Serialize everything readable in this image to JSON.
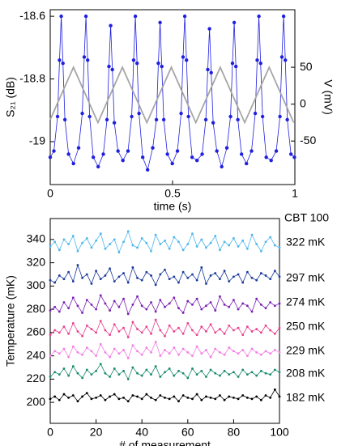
{
  "chart_data": [
    {
      "type": "scatter-line",
      "x_label": "time (s)",
      "y_label": "S₂₁ (dB)",
      "y2_label": "V (mV)",
      "xlim": [
        0,
        1
      ],
      "xticks": [
        0,
        0.5,
        1
      ],
      "ylim": [
        -19.137,
        -18.579
      ],
      "yticks": [
        -18.6,
        -18.8,
        -19
      ],
      "y2lim": [
        -109,
        128
      ],
      "y2ticks": [
        50,
        0,
        -50
      ],
      "series": [
        {
          "color": "#1f1fe0",
          "x": [
            0,
            0.015,
            0.03,
            0.038,
            0.045,
            0.052,
            0.06,
            0.075,
            0.095,
            0.116,
            0.131,
            0.139,
            0.146,
            0.153,
            0.161,
            0.176,
            0.196,
            0.217,
            0.232,
            0.24,
            0.247,
            0.254,
            0.262,
            0.277,
            0.297,
            0.318,
            0.333,
            0.341,
            0.348,
            0.355,
            0.363,
            0.378,
            0.398,
            0.419,
            0.434,
            0.442,
            0.449,
            0.456,
            0.464,
            0.479,
            0.499,
            0.52,
            0.535,
            0.543,
            0.55,
            0.557,
            0.565,
            0.58,
            0.6,
            0.621,
            0.636,
            0.644,
            0.651,
            0.658,
            0.666,
            0.681,
            0.701,
            0.722,
            0.737,
            0.745,
            0.752,
            0.759,
            0.767,
            0.782,
            0.802,
            0.823,
            0.838,
            0.846,
            0.853,
            0.86,
            0.868,
            0.883,
            0.903,
            0.924,
            0.939,
            0.947,
            0.954,
            0.961,
            0.969,
            0.984,
            0.998
          ],
          "values": [
            -19.05,
            -19.03,
            -18.92,
            -18.74,
            -18.6,
            -18.75,
            -18.93,
            -19.04,
            -19.07,
            -19.02,
            -18.91,
            -18.73,
            -18.6,
            -18.74,
            -18.92,
            -19.05,
            -19.08,
            -19.04,
            -18.93,
            -18.76,
            -18.63,
            -18.77,
            -18.94,
            -19.03,
            -19.06,
            -19.03,
            -18.92,
            -18.74,
            -18.6,
            -18.75,
            -18.91,
            -19.05,
            -19.09,
            -19.02,
            -18.93,
            -18.75,
            -18.62,
            -18.76,
            -18.93,
            -19.04,
            -19.07,
            -19.03,
            -18.91,
            -18.73,
            -18.6,
            -18.74,
            -18.92,
            -19.05,
            -19.06,
            -19.04,
            -18.93,
            -18.77,
            -18.64,
            -18.78,
            -18.94,
            -19.03,
            -19.08,
            -19.02,
            -18.92,
            -18.75,
            -18.62,
            -18.76,
            -18.93,
            -19.04,
            -19.07,
            -19.03,
            -18.91,
            -18.74,
            -18.6,
            -18.75,
            -18.92,
            -19.05,
            -19.06,
            -19.03,
            -18.92,
            -18.73,
            -18.6,
            -18.74,
            -18.93,
            -19.04,
            -19.05
          ]
        },
        {
          "color": "#a6a6a6",
          "axis": "y2",
          "markers": false,
          "x": [
            0,
            0.095,
            0.195,
            0.295,
            0.395,
            0.495,
            0.595,
            0.695,
            0.795,
            0.895,
            0.995
          ],
          "values": [
            -21,
            50,
            -25,
            50,
            -25,
            50,
            -25,
            50,
            -25,
            50,
            -25
          ]
        }
      ]
    },
    {
      "type": "scatter-line",
      "x_label": "# of measurement",
      "y_label": "Temperature (mK)",
      "annotation": "CBT 100",
      "xlim": [
        0,
        100
      ],
      "xticks": [
        0,
        20,
        40,
        60,
        80,
        100
      ],
      "ylim": [
        182,
        358
      ],
      "yticks": [
        200,
        220,
        240,
        260,
        280,
        300,
        320,
        340
      ],
      "x": [
        0,
        2,
        4,
        6,
        8,
        10,
        12,
        14,
        16,
        18,
        20,
        22,
        24,
        26,
        28,
        30,
        32,
        34,
        36,
        38,
        40,
        42,
        44,
        46,
        48,
        50,
        52,
        54,
        56,
        58,
        60,
        62,
        64,
        66,
        68,
        70,
        72,
        74,
        76,
        78,
        80,
        82,
        84,
        86,
        88,
        90,
        92,
        94,
        96,
        98,
        100
      ],
      "series": [
        {
          "name": "322 mK",
          "color": "#4db6ec",
          "values": [
            334,
            338,
            331,
            340,
            336,
            343,
            330,
            337,
            341,
            333,
            339,
            345,
            332,
            336,
            340,
            329,
            338,
            347,
            335,
            333,
            341,
            337,
            330,
            344,
            336,
            339,
            332,
            342,
            338,
            331,
            336,
            345,
            334,
            340,
            333,
            337,
            343,
            331,
            338,
            335,
            341,
            334,
            339,
            332,
            344,
            336,
            330,
            338,
            342,
            335,
            333
          ]
        },
        {
          "name": "297 mK",
          "color": "#1b3a9c",
          "values": [
            305,
            303,
            309,
            306,
            312,
            304,
            318,
            307,
            310,
            302,
            313,
            306,
            309,
            315,
            304,
            308,
            311,
            303,
            316,
            307,
            305,
            312,
            309,
            301,
            310,
            314,
            306,
            308,
            303,
            312,
            307,
            310,
            305,
            316,
            302,
            309,
            311,
            306,
            313,
            304,
            308,
            310,
            303,
            312,
            307,
            305,
            311,
            309,
            306,
            313,
            308
          ]
        },
        {
          "name": "274 mK",
          "color": "#7a1fb4",
          "values": [
            279,
            282,
            278,
            286,
            281,
            290,
            283,
            277,
            288,
            284,
            280,
            292,
            285,
            279,
            287,
            282,
            289,
            276,
            284,
            291,
            283,
            280,
            286,
            278,
            288,
            282,
            285,
            290,
            281,
            277,
            287,
            284,
            289,
            280,
            283,
            286,
            279,
            291,
            284,
            282,
            288,
            280,
            285,
            283,
            278,
            289,
            284,
            281,
            286,
            283,
            285
          ]
        },
        {
          "name": "250 mK",
          "color": "#ea3f8f",
          "values": [
            258,
            262,
            260,
            265,
            259,
            268,
            261,
            257,
            266,
            263,
            260,
            270,
            262,
            258,
            267,
            261,
            264,
            256,
            269,
            263,
            260,
            265,
            259,
            271,
            262,
            257,
            266,
            261,
            264,
            259,
            268,
            262,
            258,
            265,
            261,
            267,
            260,
            263,
            259,
            266,
            262,
            264,
            258,
            265,
            261,
            263,
            260,
            266,
            262,
            259,
            264
          ]
        },
        {
          "name": "229 mK",
          "color": "#f47de4",
          "values": [
            240,
            244,
            242,
            246,
            239,
            248,
            243,
            241,
            247,
            244,
            240,
            250,
            243,
            239,
            246,
            242,
            245,
            238,
            249,
            244,
            241,
            247,
            243,
            252,
            240,
            245,
            242,
            247,
            241,
            246,
            243,
            240,
            248,
            242,
            245,
            239,
            246,
            243,
            241,
            247,
            244,
            242,
            245,
            240,
            246,
            243,
            241,
            244,
            242,
            245,
            243
          ]
        },
        {
          "name": "208 mK",
          "color": "#1a8a6c",
          "values": [
            222,
            226,
            224,
            229,
            223,
            231,
            225,
            221,
            228,
            224,
            227,
            233,
            225,
            222,
            229,
            224,
            227,
            220,
            230,
            225,
            223,
            228,
            224,
            231,
            222,
            226,
            229,
            223,
            227,
            225,
            221,
            229,
            224,
            227,
            222,
            228,
            225,
            223,
            227,
            224,
            226,
            222,
            228,
            224,
            226,
            223,
            227,
            225,
            224,
            228,
            226
          ]
        },
        {
          "name": "182 mK",
          "color": "#000000",
          "values": [
            203,
            205,
            202,
            207,
            204,
            206,
            201,
            205,
            208,
            203,
            204,
            206,
            202,
            205,
            207,
            203,
            204,
            201,
            206,
            205,
            203,
            207,
            204,
            202,
            206,
            204,
            203,
            205,
            201,
            206,
            204,
            203,
            207,
            202,
            205,
            204,
            203,
            206,
            202,
            205,
            204,
            203,
            206,
            204,
            203,
            205,
            202,
            206,
            204,
            211,
            205
          ]
        }
      ]
    }
  ]
}
